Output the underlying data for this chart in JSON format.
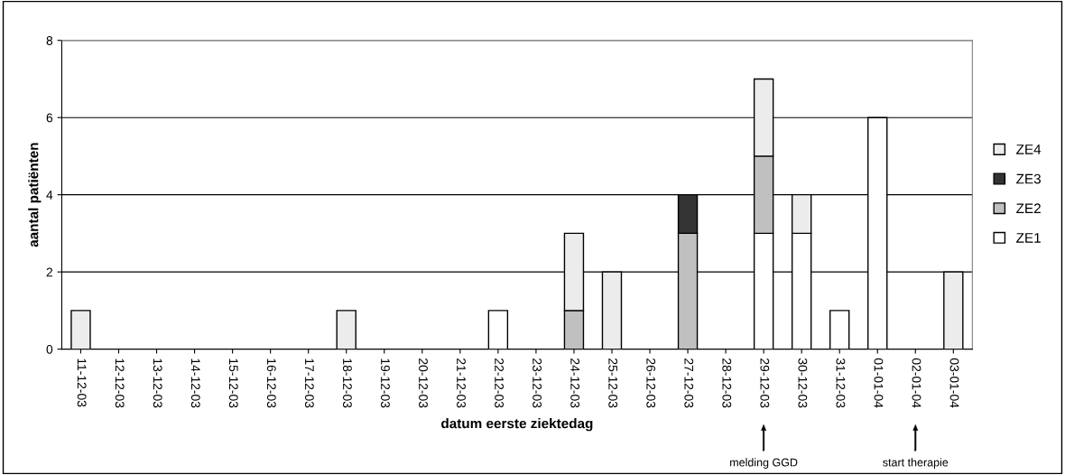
{
  "chart_data": {
    "type": "bar",
    "stacked": true,
    "xlabel": "datum eerste ziektedag",
    "ylabel": "aantal patiënten",
    "categories": [
      "11-12-03",
      "12-12-03",
      "13-12-03",
      "14-12-03",
      "15-12-03",
      "16-12-03",
      "17-12-03",
      "18-12-03",
      "19-12-03",
      "20-12-03",
      "21-12-03",
      "22-12-03",
      "23-12-03",
      "24-12-03",
      "25-12-03",
      "26-12-03",
      "27-12-03",
      "28-12-03",
      "29-12-03",
      "30-12-03",
      "31-12-03",
      "01-01-04",
      "02-01-04",
      "03-01-04"
    ],
    "series": [
      {
        "name": "ZE1",
        "color": "#ffffff",
        "values": [
          0,
          0,
          0,
          0,
          0,
          0,
          0,
          0,
          0,
          0,
          0,
          1,
          0,
          0,
          0,
          0,
          0,
          0,
          3,
          3,
          1,
          6,
          0,
          0
        ]
      },
      {
        "name": "ZE2",
        "color": "#c0c0c0",
        "values": [
          0,
          0,
          0,
          0,
          0,
          0,
          0,
          0,
          0,
          0,
          0,
          0,
          0,
          1,
          0,
          0,
          3,
          0,
          2,
          0,
          0,
          0,
          0,
          0
        ]
      },
      {
        "name": "ZE3",
        "color": "#333333",
        "values": [
          0,
          0,
          0,
          0,
          0,
          0,
          0,
          0,
          0,
          0,
          0,
          0,
          0,
          0,
          0,
          0,
          1,
          0,
          0,
          0,
          0,
          0,
          0,
          0
        ]
      },
      {
        "name": "ZE4",
        "color": "#ececec",
        "values": [
          1,
          0,
          0,
          0,
          0,
          0,
          0,
          1,
          0,
          0,
          0,
          0,
          0,
          2,
          2,
          0,
          0,
          0,
          2,
          1,
          0,
          0,
          0,
          2
        ]
      }
    ],
    "ylim": [
      0,
      8
    ],
    "yticks": [
      0,
      2,
      4,
      6,
      8
    ],
    "grid": "y",
    "legend": "right",
    "annotations": [
      "melding GGD",
      "start therapie"
    ]
  }
}
